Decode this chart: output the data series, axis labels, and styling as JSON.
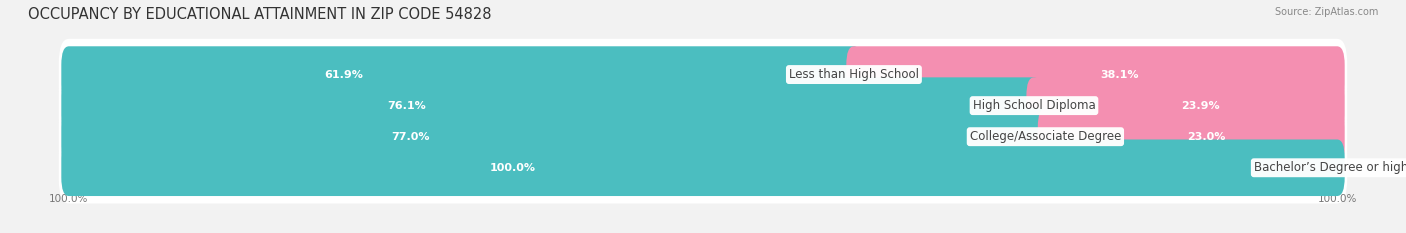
{
  "title": "OCCUPANCY BY EDUCATIONAL ATTAINMENT IN ZIP CODE 54828",
  "source": "Source: ZipAtlas.com",
  "categories": [
    "Less than High School",
    "High School Diploma",
    "College/Associate Degree",
    "Bachelor’s Degree or higher"
  ],
  "owner_pct": [
    61.9,
    76.1,
    77.0,
    100.0
  ],
  "renter_pct": [
    38.1,
    23.9,
    23.0,
    0.0
  ],
  "owner_color": "#4BBEC0",
  "renter_color": "#F48FB1",
  "renter_color_light": "#F7B8CE",
  "background_color": "#f2f2f2",
  "bar_bg_color": "#ffffff",
  "title_fontsize": 10.5,
  "label_fontsize": 8.0,
  "cat_fontsize": 8.5,
  "bar_height": 0.62,
  "figsize": [
    14.06,
    2.33
  ]
}
